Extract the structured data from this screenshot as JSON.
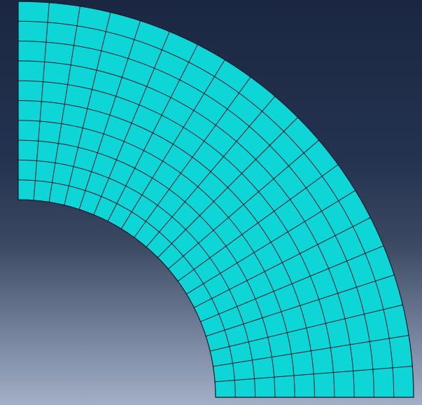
{
  "viewport": {
    "background_top_color": "#1b2742",
    "background_bottom_color": "#a2afc7"
  },
  "mesh": {
    "shape": "quarter annulus",
    "fill_color": "#0fd6d6",
    "edge_color": "#0a1a2a",
    "radial_divisions": 10,
    "angular_divisions": 20
  }
}
